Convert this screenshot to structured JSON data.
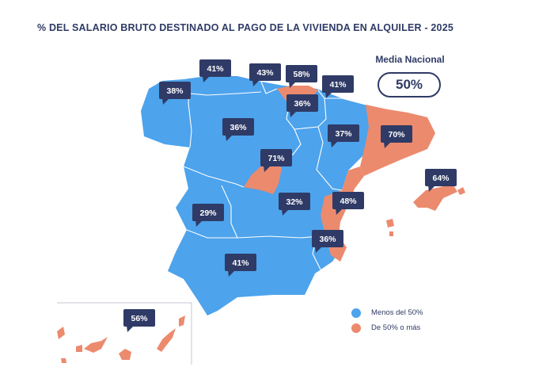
{
  "title": "% DEL SALARIO BRUTO DESTINADO AL PAGO DE LA VIVIENDA EN ALQUILER - 2025",
  "national": {
    "label": "Media Nacional",
    "value": "50%"
  },
  "legend": [
    {
      "label": "Menos del 50%",
      "color": "#4da3ec"
    },
    {
      "label": "De 50% o más",
      "color": "#ec8a6e"
    }
  ],
  "colors": {
    "below": "#4da3ec",
    "above": "#ec8a6e",
    "callout": "#2f3b66",
    "border": "#ffffff"
  },
  "regions": [
    {
      "id": "galicia",
      "value": "38%"
    },
    {
      "id": "asturias",
      "value": "41%"
    },
    {
      "id": "cantabria",
      "value": "43%"
    },
    {
      "id": "pais-vasco",
      "value": "58%"
    },
    {
      "id": "navarra",
      "value": "41%"
    },
    {
      "id": "la-rioja",
      "value": "36%"
    },
    {
      "id": "castilla-y-leon",
      "value": "36%"
    },
    {
      "id": "aragon",
      "value": "37%"
    },
    {
      "id": "cataluna",
      "value": "70%"
    },
    {
      "id": "madrid",
      "value": "71%"
    },
    {
      "id": "baleares",
      "value": "64%"
    },
    {
      "id": "extremadura",
      "value": "29%"
    },
    {
      "id": "castilla-la-mancha",
      "value": "32%"
    },
    {
      "id": "comunidad-valenciana",
      "value": "48%"
    },
    {
      "id": "murcia",
      "value": "36%"
    },
    {
      "id": "andalucia",
      "value": "41%"
    },
    {
      "id": "canarias",
      "value": "56%"
    }
  ]
}
